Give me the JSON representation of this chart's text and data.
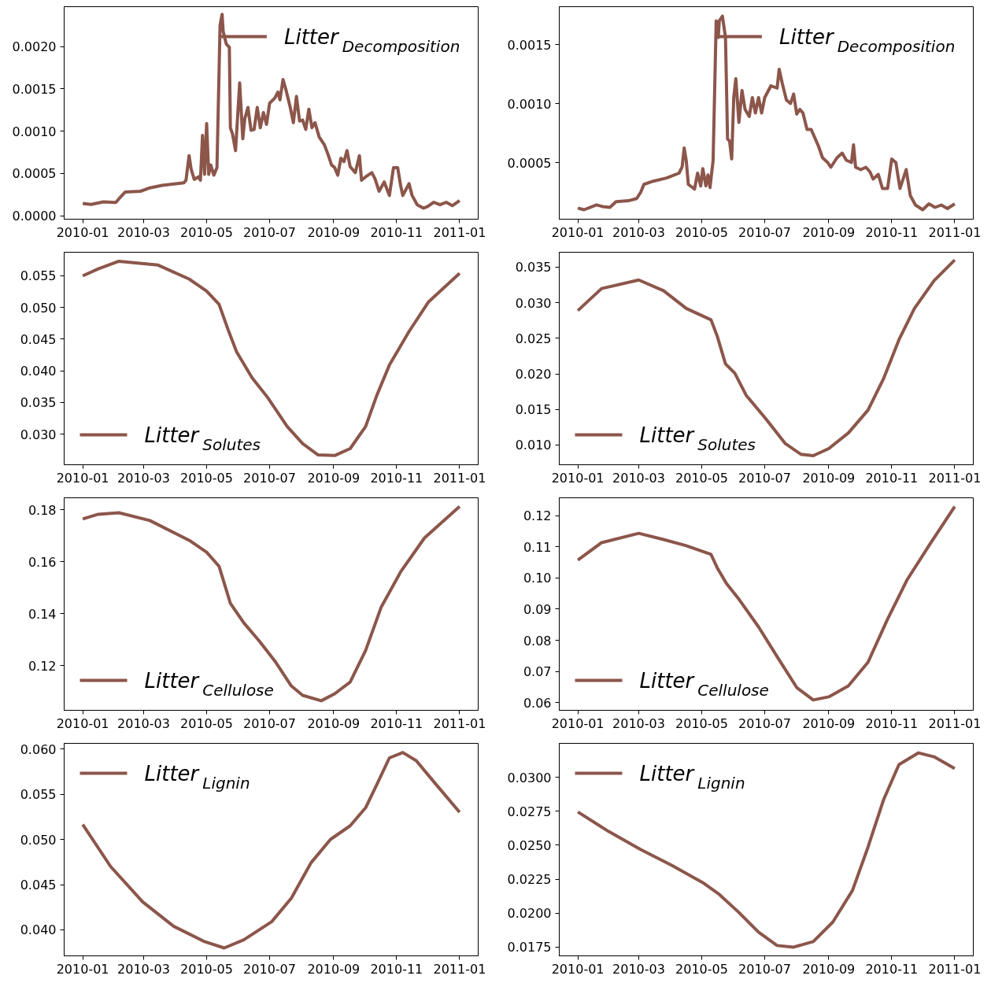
{
  "chart_data": [
    {
      "type": "line",
      "legend": "top right",
      "grid": false,
      "x": [
        "2010-01-01",
        "2010-01-09",
        "2010-01-21",
        "2010-02-02",
        "2010-02-05",
        "2010-02-11",
        "2010-02-26",
        "2010-03-07",
        "2010-03-19",
        "2010-04-09",
        "2010-04-11",
        "2010-04-14",
        "2010-04-16",
        "2010-04-19",
        "2010-04-23",
        "2010-04-25",
        "2010-04-27",
        "2010-04-29",
        "2010-05-01",
        "2010-05-03",
        "2010-05-05",
        "2010-05-08",
        "2010-05-11",
        "2010-05-14",
        "2010-05-16",
        "2010-05-17",
        "2010-05-20",
        "2010-05-23",
        "2010-05-24",
        "2010-05-26",
        "2010-05-29",
        "2010-06-02",
        "2010-06-05",
        "2010-06-07",
        "2010-06-10",
        "2010-06-13",
        "2010-06-16",
        "2010-06-19",
        "2010-06-22",
        "2010-06-25",
        "2010-06-28",
        "2010-07-01",
        "2010-07-06",
        "2010-07-09",
        "2010-07-11",
        "2010-07-14",
        "2010-07-17",
        "2010-07-21",
        "2010-07-24",
        "2010-07-27",
        "2010-07-30",
        "2010-08-02",
        "2010-08-05",
        "2010-08-08",
        "2010-08-11",
        "2010-08-14",
        "2010-08-18",
        "2010-08-23",
        "2010-08-27",
        "2010-08-30",
        "2010-09-02",
        "2010-09-05",
        "2010-09-08",
        "2010-09-11",
        "2010-09-14",
        "2010-09-17",
        "2010-09-22",
        "2010-09-26",
        "2010-09-28",
        "2010-10-02",
        "2010-10-08",
        "2010-10-11",
        "2010-10-15",
        "2010-10-20",
        "2010-10-25",
        "2010-10-29",
        "2010-11-02",
        "2010-11-05",
        "2010-11-07",
        "2010-11-13",
        "2010-11-16",
        "2010-11-21",
        "2010-11-27",
        "2010-12-01",
        "2010-12-07",
        "2010-12-13",
        "2010-12-19",
        "2010-12-25",
        "2011-01-01"
      ],
      "series": [
        {
          "name": "Litter$_{Decomposition}$",
          "color": "#8c564b",
          "values": [
            0.000146,
            0.000135,
            0.000165,
            0.000157,
            0.0002,
            0.00028,
            0.00029,
            0.00033,
            0.00036,
            0.00039,
            0.00042,
            0.00071,
            0.00055,
            0.00043,
            0.00046,
            0.00042,
            0.00095,
            0.00049,
            0.00109,
            0.00049,
            0.0006,
            0.00048,
            0.00057,
            0.00225,
            0.00238,
            0.00218,
            0.00203,
            0.00199,
            0.00104,
            0.00097,
            0.00077,
            0.00157,
            0.00091,
            0.00115,
            0.00128,
            0.00101,
            0.00102,
            0.00128,
            0.00104,
            0.00122,
            0.00108,
            0.00133,
            0.00139,
            0.00146,
            0.00137,
            0.00161,
            0.00148,
            0.00128,
            0.0011,
            0.00141,
            0.00112,
            0.00113,
            0.00102,
            0.00126,
            0.00104,
            0.0011,
            0.00093,
            0.00084,
            0.00071,
            0.0006,
            0.00057,
            0.00048,
            0.00068,
            0.00064,
            0.00077,
            0.00058,
            0.00051,
            0.00071,
            0.00042,
            0.00046,
            0.00051,
            0.00044,
            0.00029,
            0.0004,
            0.00024,
            0.00057,
            0.00057,
            0.00035,
            0.00024,
            0.00038,
            0.00024,
            0.00013,
            9e-05,
            0.00011,
            0.00016,
            0.00013,
            0.00016,
            0.00012,
            0.00018
          ]
        }
      ],
      "xlim": [
        "2009-12-14",
        "2011-01-19"
      ],
      "xticks": [
        "2010-01",
        "2010-03",
        "2010-05",
        "2010-07",
        "2010-09",
        "2010-11",
        "2011-01"
      ],
      "ylim": [
        -4e-05,
        0.00247
      ],
      "yticks": [
        {
          "value": 0,
          "label": "0.0000"
        },
        {
          "value": 0.0005,
          "label": "0.0005"
        },
        {
          "value": 0.001,
          "label": "0.0010"
        },
        {
          "value": 0.0015,
          "label": "0.0015"
        },
        {
          "value": 0.002,
          "label": "0.0020"
        }
      ]
    },
    {
      "type": "line",
      "legend": "top right",
      "grid": false,
      "x": [
        "2010-01-01",
        "2010-01-07",
        "2010-01-19",
        "2010-01-25",
        "2010-02-01",
        "2010-02-07",
        "2010-02-19",
        "2010-02-27",
        "2010-03-03",
        "2010-03-06",
        "2010-03-15",
        "2010-03-28",
        "2010-04-09",
        "2010-04-12",
        "2010-04-14",
        "2010-04-16",
        "2010-04-18",
        "2010-04-24",
        "2010-04-27",
        "2010-04-30",
        "2010-05-02",
        "2010-05-05",
        "2010-05-07",
        "2010-05-09",
        "2010-05-12",
        "2010-05-15",
        "2010-05-17",
        "2010-05-18",
        "2010-05-21",
        "2010-05-24",
        "2010-05-26",
        "2010-05-28",
        "2010-05-30",
        "2010-06-01",
        "2010-06-03",
        "2010-06-06",
        "2010-06-09",
        "2010-06-12",
        "2010-06-16",
        "2010-06-19",
        "2010-06-22",
        "2010-06-25",
        "2010-06-28",
        "2010-07-01",
        "2010-07-07",
        "2010-07-13",
        "2010-07-15",
        "2010-07-18",
        "2010-07-22",
        "2010-07-26",
        "2010-07-29",
        "2010-08-01",
        "2010-08-04",
        "2010-08-07",
        "2010-08-11",
        "2010-08-15",
        "2010-08-22",
        "2010-08-26",
        "2010-08-31",
        "2010-09-03",
        "2010-09-09",
        "2010-09-14",
        "2010-09-18",
        "2010-09-23",
        "2010-09-25",
        "2010-09-27",
        "2010-10-02",
        "2010-10-07",
        "2010-10-11",
        "2010-10-14",
        "2010-10-19",
        "2010-10-23",
        "2010-10-28",
        "2010-11-01",
        "2010-11-05",
        "2010-11-09",
        "2010-11-15",
        "2010-11-19",
        "2010-11-24",
        "2010-12-01",
        "2010-12-07",
        "2010-12-13",
        "2010-12-19",
        "2010-12-25",
        "2011-01-01"
      ],
      "series": [
        {
          "name": "Litter$_{Decomposition}$",
          "color": "#8c564b",
          "values": [
            0.000114,
            0.0001,
            0.000141,
            0.000127,
            0.00012,
            0.000168,
            0.000176,
            0.000195,
            0.00025,
            0.000315,
            0.000342,
            0.000369,
            0.00041,
            0.000462,
            0.000623,
            0.000516,
            0.000315,
            0.000275,
            0.00041,
            0.000302,
            0.000449,
            0.000302,
            0.000395,
            0.000288,
            0.000516,
            0.0017,
            0.00156,
            0.0017,
            0.00174,
            0.00156,
            0.0007,
            0.00068,
            0.00053,
            0.00105,
            0.00121,
            0.00084,
            0.00111,
            0.00095,
            0.00089,
            0.00105,
            0.00092,
            0.00105,
            0.00092,
            0.00105,
            0.00115,
            0.00113,
            0.00129,
            0.00117,
            0.00103,
            0.001,
            0.00108,
            0.00091,
            0.00095,
            0.00092,
            0.00078,
            0.00078,
            0.00064,
            0.00054,
            0.0005,
            0.00046,
            0.00054,
            0.00058,
            0.00052,
            0.0005,
            0.00065,
            0.00046,
            0.00044,
            0.00046,
            0.00042,
            0.00036,
            0.0004,
            0.00028,
            0.00028,
            0.00053,
            0.0005,
            0.00028,
            0.00044,
            0.00022,
            0.00014,
            0.0001,
            0.00015,
            0.00012,
            0.00014,
            0.00011,
            0.00015
          ]
        }
      ],
      "xlim": [
        "2009-12-14",
        "2011-01-19"
      ],
      "xticks": [
        "2010-01",
        "2010-03",
        "2010-05",
        "2010-07",
        "2010-09",
        "2010-11",
        "2011-01"
      ],
      "ylim": [
        2e-05,
        0.00182
      ],
      "yticks": [
        {
          "value": 0.0005,
          "label": "0.0005"
        },
        {
          "value": 0.001,
          "label": "0.0010"
        },
        {
          "value": 0.0015,
          "label": "0.0015"
        }
      ]
    },
    {
      "type": "line",
      "legend": "bottom left",
      "grid": false,
      "x": [
        "2010-01-01",
        "2010-01-16",
        "2010-02-05",
        "2010-03-15",
        "2010-04-14",
        "2010-05-01",
        "2010-05-13",
        "2010-05-22",
        "2010-05-30",
        "2010-06-14",
        "2010-06-29",
        "2010-07-18",
        "2010-08-02",
        "2010-08-17",
        "2010-09-02",
        "2010-09-17",
        "2010-10-02",
        "2010-10-13",
        "2010-10-25",
        "2010-11-13",
        "2010-12-02",
        "2011-01-01"
      ],
      "series": [
        {
          "name": "Litter$_{Solutes}$",
          "color": "#8c564b",
          "values": [
            0.055,
            0.0561,
            0.0573,
            0.0567,
            0.0545,
            0.0526,
            0.0505,
            0.0464,
            0.043,
            0.0389,
            0.0358,
            0.0312,
            0.0285,
            0.0267,
            0.0266,
            0.0277,
            0.0312,
            0.0362,
            0.0409,
            0.0462,
            0.0509,
            0.0554
          ]
        }
      ],
      "xlim": [
        "2009-12-14",
        "2011-01-19"
      ],
      "xticks": [
        "2010-01",
        "2010-03",
        "2010-05",
        "2010-07",
        "2010-09",
        "2010-11",
        "2011-01"
      ],
      "ylim": [
        0.02515,
        0.05873
      ],
      "yticks": [
        {
          "value": 0.03,
          "label": "0.030"
        },
        {
          "value": 0.035,
          "label": "0.035"
        },
        {
          "value": 0.04,
          "label": "0.040"
        },
        {
          "value": 0.045,
          "label": "0.045"
        },
        {
          "value": 0.05,
          "label": "0.050"
        },
        {
          "value": 0.055,
          "label": "0.055"
        }
      ]
    },
    {
      "type": "line",
      "legend": "bottom left",
      "grid": false,
      "x": [
        "2010-01-01",
        "2010-01-24",
        "2010-03-01",
        "2010-03-25",
        "2010-04-16",
        "2010-05-10",
        "2010-05-16",
        "2010-05-24",
        "2010-06-02",
        "2010-06-13",
        "2010-07-02",
        "2010-07-21",
        "2010-08-05",
        "2010-08-17",
        "2010-09-01",
        "2010-09-20",
        "2010-10-09",
        "2010-10-24",
        "2010-11-08",
        "2010-11-23",
        "2010-12-12",
        "2011-01-01"
      ],
      "series": [
        {
          "name": "Litter$_{Solutes}$",
          "color": "#8c564b",
          "values": [
            0.0289,
            0.032,
            0.0332,
            0.0317,
            0.0292,
            0.0276,
            0.0253,
            0.0214,
            0.0201,
            0.017,
            0.0137,
            0.0102,
            0.0087,
            0.0085,
            0.0095,
            0.0117,
            0.0149,
            0.0193,
            0.0248,
            0.0292,
            0.0331,
            0.036
          ]
        }
      ],
      "xlim": [
        "2009-12-14",
        "2011-01-19"
      ],
      "xticks": [
        "2010-01",
        "2010-03",
        "2010-05",
        "2010-07",
        "2010-09",
        "2010-11",
        "2011-01"
      ],
      "ylim": [
        0.00723,
        0.0371
      ],
      "yticks": [
        {
          "value": 0.01,
          "label": "0.010"
        },
        {
          "value": 0.015,
          "label": "0.015"
        },
        {
          "value": 0.02,
          "label": "0.020"
        },
        {
          "value": 0.025,
          "label": "0.025"
        },
        {
          "value": 0.03,
          "label": "0.030"
        },
        {
          "value": 0.035,
          "label": "0.035"
        }
      ]
    },
    {
      "type": "line",
      "legend": "bottom left",
      "grid": false,
      "x": [
        "2010-01-01",
        "2010-01-16",
        "2010-02-05",
        "2010-03-07",
        "2010-04-14",
        "2010-05-01",
        "2010-05-13",
        "2010-05-24",
        "2010-06-06",
        "2010-06-21",
        "2010-07-07",
        "2010-07-22",
        "2010-08-02",
        "2010-08-20",
        "2010-09-02",
        "2010-09-17",
        "2010-10-02",
        "2010-10-17",
        "2010-11-05",
        "2010-11-28",
        "2011-01-01"
      ],
      "series": [
        {
          "name": "Litter$_{Cellulose}$",
          "color": "#8c564b",
          "values": [
            0.1764,
            0.1782,
            0.1788,
            0.1758,
            0.1682,
            0.1636,
            0.1582,
            0.1439,
            0.1364,
            0.1294,
            0.1212,
            0.1121,
            0.1085,
            0.1064,
            0.1091,
            0.1136,
            0.1258,
            0.1424,
            0.1561,
            0.1691,
            0.1812
          ]
        }
      ],
      "xlim": [
        "2009-12-14",
        "2011-01-19"
      ],
      "xticks": [
        "2010-01",
        "2010-03",
        "2010-05",
        "2010-07",
        "2010-09",
        "2010-11",
        "2011-01"
      ],
      "ylim": [
        0.10273,
        0.18455
      ],
      "yticks": [
        {
          "value": 0.12,
          "label": "0.12"
        },
        {
          "value": 0.14,
          "label": "0.14"
        },
        {
          "value": 0.16,
          "label": "0.16"
        },
        {
          "value": 0.18,
          "label": "0.18"
        }
      ]
    },
    {
      "type": "line",
      "legend": "bottom left",
      "grid": false,
      "x": [
        "2010-01-01",
        "2010-01-24",
        "2010-03-01",
        "2010-03-25",
        "2010-04-16",
        "2010-05-10",
        "2010-05-16",
        "2010-05-25",
        "2010-06-06",
        "2010-06-25",
        "2010-07-14",
        "2010-08-01",
        "2010-08-17",
        "2010-09-01",
        "2010-09-20",
        "2010-10-09",
        "2010-10-28",
        "2010-11-16",
        "2010-12-08",
        "2011-01-01"
      ],
      "series": [
        {
          "name": "Litter$_{Cellulose}$",
          "color": "#8c564b",
          "values": [
            0.1058,
            0.1114,
            0.1144,
            0.1124,
            0.1104,
            0.1076,
            0.1033,
            0.0982,
            0.0932,
            0.0843,
            0.0742,
            0.0648,
            0.0608,
            0.0618,
            0.0653,
            0.0729,
            0.0868,
            0.0995,
            0.1109,
            0.123
          ]
        }
      ],
      "xlim": [
        "2009-12-14",
        "2011-01-19"
      ],
      "xticks": [
        "2010-01",
        "2010-03",
        "2010-05",
        "2010-07",
        "2010-09",
        "2010-11",
        "2011-01"
      ],
      "ylim": [
        0.05747,
        0.12582
      ],
      "yticks": [
        {
          "value": 0.06,
          "label": "0.06"
        },
        {
          "value": 0.07,
          "label": "0.07"
        },
        {
          "value": 0.08,
          "label": "0.08"
        },
        {
          "value": 0.09,
          "label": "0.09"
        },
        {
          "value": 0.1,
          "label": "0.10"
        },
        {
          "value": 0.11,
          "label": "0.11"
        },
        {
          "value": 0.12,
          "label": "0.12"
        }
      ]
    },
    {
      "type": "line",
      "legend": "top left",
      "grid": false,
      "x": [
        "2010-01-01",
        "2010-01-28",
        "2010-02-28",
        "2010-03-30",
        "2010-04-29",
        "2010-05-18",
        "2010-06-06",
        "2010-07-03",
        "2010-07-22",
        "2010-08-10",
        "2010-08-29",
        "2010-09-17",
        "2010-10-02",
        "2010-10-13",
        "2010-10-25",
        "2010-11-07",
        "2010-11-20",
        "2010-12-09",
        "2011-01-01"
      ],
      "series": [
        {
          "name": "Litter$_{Lignin}$",
          "color": "#8c564b",
          "values": [
            0.05165,
            0.047,
            0.0431,
            0.0404,
            0.0387,
            0.038,
            0.0389,
            0.0409,
            0.0435,
            0.0474,
            0.05,
            0.0515,
            0.0535,
            0.0561,
            0.059,
            0.0596,
            0.0587,
            0.0561,
            0.053
          ]
        }
      ],
      "xlim": [
        "2009-12-14",
        "2011-01-19"
      ],
      "xticks": [
        "2010-01",
        "2010-03",
        "2010-05",
        "2010-07",
        "2010-09",
        "2010-11",
        "2011-01"
      ],
      "ylim": [
        0.03713,
        0.06061
      ],
      "yticks": [
        {
          "value": 0.04,
          "label": "0.040"
        },
        {
          "value": 0.045,
          "label": "0.045"
        },
        {
          "value": 0.05,
          "label": "0.050"
        },
        {
          "value": 0.055,
          "label": "0.055"
        },
        {
          "value": 0.06,
          "label": "0.060"
        }
      ]
    },
    {
      "type": "line",
      "legend": "top left",
      "grid": false,
      "x": [
        "2010-01-01",
        "2010-01-31",
        "2010-03-03",
        "2010-04-02",
        "2010-05-02",
        "2010-05-18",
        "2010-06-06",
        "2010-06-25",
        "2010-07-13",
        "2010-07-29",
        "2010-08-17",
        "2010-09-05",
        "2010-09-24",
        "2010-10-09",
        "2010-10-24",
        "2010-11-08",
        "2010-11-27",
        "2010-12-12",
        "2011-01-01"
      ],
      "series": [
        {
          "name": "Litter$_{Lignin}$",
          "color": "#8c564b",
          "values": [
            0.02745,
            0.026,
            0.02468,
            0.02352,
            0.02225,
            0.02138,
            0.02005,
            0.0186,
            0.01762,
            0.0175,
            0.01791,
            0.01935,
            0.02167,
            0.02485,
            0.02832,
            0.03093,
            0.03179,
            0.0315,
            0.03064
          ]
        }
      ],
      "xlim": [
        "2009-12-14",
        "2011-01-19"
      ],
      "xticks": [
        "2010-01",
        "2010-03",
        "2010-05",
        "2010-07",
        "2010-09",
        "2010-11",
        "2011-01"
      ],
      "ylim": [
        0.01686,
        0.03249
      ],
      "yticks": [
        {
          "value": 0.0175,
          "label": "0.0175"
        },
        {
          "value": 0.02,
          "label": "0.0200"
        },
        {
          "value": 0.0225,
          "label": "0.0225"
        },
        {
          "value": 0.025,
          "label": "0.0250"
        },
        {
          "value": 0.0275,
          "label": "0.0275"
        },
        {
          "value": 0.03,
          "label": "0.0300"
        }
      ]
    }
  ]
}
